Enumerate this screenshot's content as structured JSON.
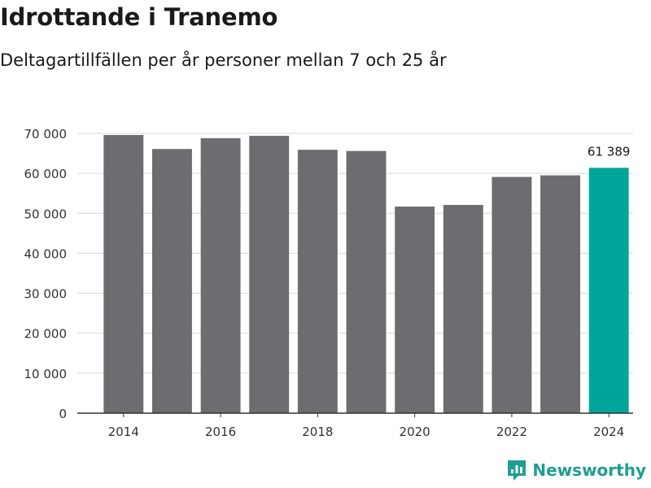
{
  "header": {
    "title": "Idrottande i Tranemo",
    "subtitle": "Deltagartillfällen per år personer mellan 7 och 25 år"
  },
  "brand": {
    "name": "Newsworthy",
    "color": "#1f9e95"
  },
  "colors": {
    "bar": "#6d6c71",
    "highlight": "#00a59a",
    "grid": "#d9d9d9",
    "axis": "#333333"
  },
  "chart_data": {
    "type": "bar",
    "title": "Idrottande i Tranemo",
    "subtitle": "Deltagartillfällen per år personer mellan 7 och 25 år",
    "xlabel": "",
    "ylabel": "",
    "categories": [
      2014,
      2015,
      2016,
      2017,
      2018,
      2019,
      2020,
      2021,
      2022,
      2023,
      2024
    ],
    "values": [
      69600,
      66100,
      68800,
      69400,
      65900,
      65600,
      51700,
      52100,
      59100,
      59500,
      61389
    ],
    "ylim": [
      0,
      70000
    ],
    "yticks": [
      0,
      10000,
      20000,
      30000,
      40000,
      50000,
      60000,
      70000
    ],
    "ytick_labels": [
      "0",
      "10 000",
      "20 000",
      "30 000",
      "40 000",
      "50 000",
      "60 000",
      "70 000"
    ],
    "xticks": [
      2014,
      2016,
      2018,
      2020,
      2022,
      2024
    ],
    "xtick_labels": [
      "2014",
      "2016",
      "2018",
      "2020",
      "2022",
      "2024"
    ],
    "highlight_category": 2024,
    "annotations": [
      {
        "category": 2024,
        "text": "61 389"
      }
    ],
    "grid": true
  }
}
